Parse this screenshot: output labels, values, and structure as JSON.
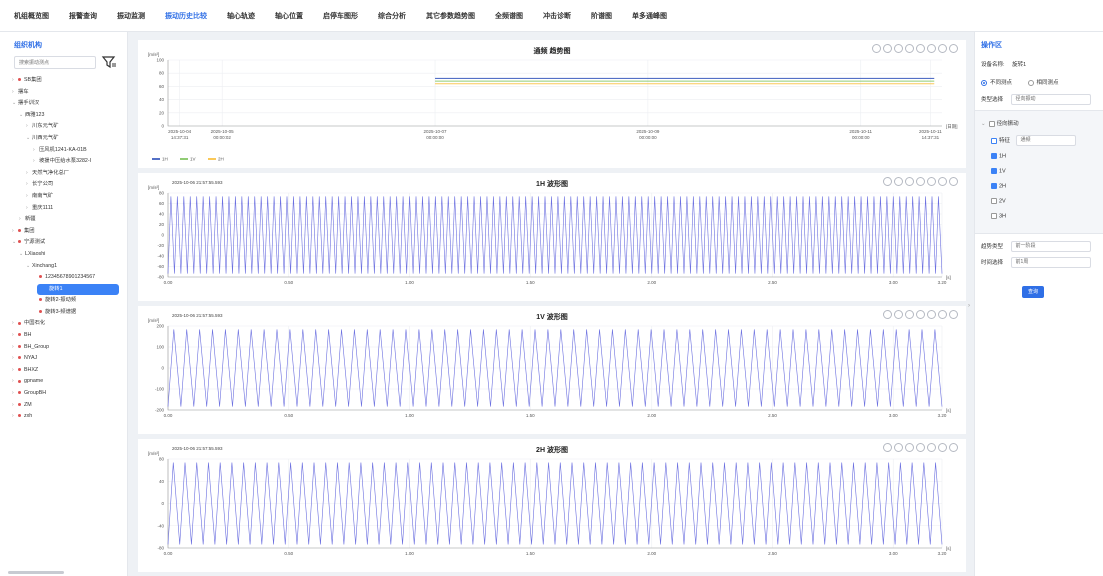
{
  "nav": {
    "tabs": [
      "机组概览图",
      "报警查询",
      "振动监测",
      "振动历史比较",
      "轴心轨迹",
      "轴心位置",
      "启停车图形",
      "综合分析",
      "其它参数趋势图",
      "全频谱图",
      "冲击诊断",
      "阶谱图",
      "单多通峰图"
    ],
    "active": 3
  },
  "left": {
    "title": "组织机构",
    "search_placeholder": "搜索振动测点",
    "tree": [
      {
        "label": "SB集团",
        "depth": 0,
        "arrow": "›",
        "dot": true
      },
      {
        "label": "摆车",
        "depth": 0,
        "arrow": "›"
      },
      {
        "label": "摆手训汉",
        "depth": 0,
        "arrow": "⌄"
      },
      {
        "label": "西雅123",
        "depth": 1,
        "arrow": "⌄"
      },
      {
        "label": "川东元气矿",
        "depth": 2,
        "arrow": "›"
      },
      {
        "label": "川西元气矿",
        "depth": 2,
        "arrow": "⌄"
      },
      {
        "label": "压风机1241-KA-01B",
        "depth": 3,
        "arrow": "›"
      },
      {
        "label": "坡援中压给水泵3282-I",
        "depth": 3,
        "arrow": "›"
      },
      {
        "label": "天然气净化总厂",
        "depth": 2,
        "arrow": "›"
      },
      {
        "label": "长宁公司",
        "depth": 2,
        "arrow": "›"
      },
      {
        "label": "南南气矿",
        "depth": 2,
        "arrow": "›"
      },
      {
        "label": "重庆1111",
        "depth": 2,
        "arrow": "›"
      },
      {
        "label": "新疆",
        "depth": 1,
        "arrow": "›"
      },
      {
        "label": "集团",
        "depth": 0,
        "arrow": "›",
        "dot": true
      },
      {
        "label": "宁源测试",
        "depth": 0,
        "arrow": "⌄",
        "dot": true
      },
      {
        "label": "LXiaoshi",
        "depth": 1,
        "arrow": "⌄"
      },
      {
        "label": "Xinchang1",
        "depth": 2,
        "arrow": "⌄"
      },
      {
        "label": "12345678901234567",
        "depth": 3,
        "arrow": "",
        "dot": true
      },
      {
        "label": "旋转1",
        "depth": 3,
        "arrow": "",
        "selected": true
      },
      {
        "label": "旋转2-振动频",
        "depth": 3,
        "arrow": "",
        "dot": true
      },
      {
        "label": "旋转3-频谱据",
        "depth": 3,
        "arrow": "",
        "dot": true
      },
      {
        "label": "中国石化",
        "depth": 0,
        "arrow": "›",
        "dot": true
      },
      {
        "label": "BH",
        "depth": 0,
        "arrow": "›",
        "dot": true
      },
      {
        "label": "BH_Group",
        "depth": 0,
        "arrow": "›",
        "dot": true
      },
      {
        "label": "NYAJ",
        "depth": 0,
        "arrow": "›",
        "dot": true
      },
      {
        "label": "BHXZ",
        "depth": 0,
        "arrow": "›",
        "dot": true
      },
      {
        "label": "gpname",
        "depth": 0,
        "arrow": "›",
        "dot": true
      },
      {
        "label": "GroupBH",
        "depth": 0,
        "arrow": "›",
        "dot": true
      },
      {
        "label": "ZM",
        "depth": 0,
        "arrow": "›",
        "dot": true
      },
      {
        "label": "zxh",
        "depth": 0,
        "arrow": "›",
        "dot": true
      }
    ]
  },
  "right": {
    "title": "操作区",
    "device_label": "设备名称:",
    "device_value": "旋转1",
    "mode_opt1": "不同测点",
    "mode_opt2": "相同测点",
    "type_label": "类型选择",
    "type_value": "径向振动",
    "tree_root": "径向振动",
    "feature_label": "特征",
    "feature_value": "通频",
    "channels": [
      {
        "label": "1H",
        "checked": true
      },
      {
        "label": "1V",
        "checked": true
      },
      {
        "label": "2H",
        "checked": true
      },
      {
        "label": "2V",
        "checked": false
      },
      {
        "label": "3H",
        "checked": false
      }
    ],
    "trend_label": "趋势类型",
    "trend_value": "前一阶段",
    "time_label": "时间选择",
    "time_value": "前1周",
    "confirm": "查询"
  },
  "charts": [
    {
      "title": "通频 趋势图",
      "timestamp": "",
      "yunit": "[m/s²]",
      "xunit": "[日期]",
      "type": "line",
      "yticks": [
        "100",
        "80",
        "60",
        "40",
        "20",
        "0"
      ],
      "xticks": [
        "2025-10-04\n14:37:31",
        "2025-10-05\n00:00:02",
        "2025-10-07\n00:00:00",
        "2025-10-09\n00:00:00",
        "2025-10-11\n00:00:00",
        "2025-10-11\n14:37:31"
      ],
      "legend": [
        {
          "name": "1H",
          "color": "#5470c6"
        },
        {
          "name": "1V",
          "color": "#91cc75"
        },
        {
          "name": "2H",
          "color": "#fac858"
        }
      ],
      "series_levels": [
        72,
        68,
        64
      ]
    },
    {
      "title": "1H 波形图",
      "timestamp": "2025-10-06 21:57:55.593",
      "yunit": "[m/s²]",
      "xunit": "[s]",
      "type": "line",
      "yticks": [
        "80",
        "60",
        "40",
        "20",
        "0",
        "-20",
        "-40",
        "-60",
        "-80"
      ],
      "xticks": [
        "0.00",
        "0.50",
        "1.00",
        "1.50",
        "2.00",
        "2.50",
        "3.00",
        "3.20"
      ],
      "cycles": 120,
      "amplitude": 70
    },
    {
      "title": "1V 波形图",
      "timestamp": "2025-10-06 21:57:55.593",
      "yunit": "[m/s²]",
      "xunit": "[s]",
      "type": "line",
      "yticks": [
        "200",
        "100",
        "0",
        "-100",
        "-200"
      ],
      "xticks": [
        "0.00",
        "0.50",
        "1.00",
        "1.50",
        "2.00",
        "2.50",
        "3.00",
        "3.20"
      ],
      "cycles": 60,
      "amplitude": 130
    },
    {
      "title": "2H 波形图",
      "timestamp": "2025-10-06 21:57:55.593",
      "yunit": "[m/s²]",
      "xunit": "[s]",
      "type": "line",
      "yticks": [
        "80",
        "40",
        "0",
        "-40",
        "-80"
      ],
      "xticks": [
        "0.00",
        "0.50",
        "1.00",
        "1.50",
        "2.00",
        "2.50",
        "3.00",
        "3.20"
      ],
      "cycles": 66,
      "amplitude": 70
    }
  ]
}
